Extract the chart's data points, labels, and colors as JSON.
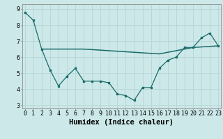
{
  "xlabel": "Humidex (Indice chaleur)",
  "bg_color": "#cce8e8",
  "grid_color": "#aad4d4",
  "line_color": "#1a6b6b",
  "x_zigzag": [
    0,
    1,
    2,
    3,
    4,
    5,
    6,
    7,
    8,
    9,
    10,
    11,
    12,
    13,
    14,
    15,
    16,
    17,
    18,
    19,
    20,
    21,
    22,
    23
  ],
  "y_zigzag": [
    8.8,
    8.3,
    6.5,
    5.2,
    4.2,
    4.8,
    5.3,
    4.5,
    4.5,
    4.5,
    4.4,
    3.7,
    3.6,
    3.3,
    4.1,
    4.1,
    5.3,
    5.8,
    6.0,
    6.6,
    6.6,
    7.2,
    7.5,
    6.7
  ],
  "x_trend": [
    2,
    7,
    16,
    19,
    20,
    23
  ],
  "y_trend": [
    6.5,
    6.5,
    6.2,
    6.5,
    6.6,
    6.7
  ],
  "ylim": [
    2.8,
    9.3
  ],
  "xlim": [
    -0.3,
    23.3
  ],
  "yticks": [
    3,
    4,
    5,
    6,
    7,
    8,
    9
  ],
  "xticks": [
    0,
    1,
    2,
    3,
    4,
    5,
    6,
    7,
    8,
    9,
    10,
    11,
    12,
    13,
    14,
    15,
    16,
    17,
    18,
    19,
    20,
    21,
    22,
    23
  ],
  "tick_fontsize": 6.0,
  "xlabel_fontsize": 7.5
}
